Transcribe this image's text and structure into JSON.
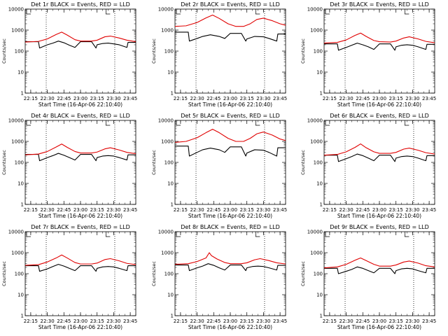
{
  "colors": {
    "events": "#000000",
    "lld": "#e00000",
    "axes": "#000000",
    "background": "#ffffff"
  },
  "chart_data": [
    {
      "type": "line",
      "title": "Det 1r BLACK = Events, RED = LLD",
      "xlabel": "Start Time (16-Apr-06 22:10:40)",
      "ylabel": "Counts/sec",
      "xtick_labels": [
        "22:15",
        "22:30",
        "22:45",
        "23:00",
        "23:15",
        "23:30",
        "23:45"
      ],
      "ytick_labels": [
        "1",
        "10",
        "100",
        "1000",
        "10000"
      ],
      "ylim": [
        1,
        10000
      ],
      "y_scale": "log",
      "vlines": [
        "22:29",
        "23:31"
      ],
      "series": [
        {
          "name": "Events",
          "color": "#000000",
          "x": [
            "22:10",
            "22:22",
            "22:23",
            "22:30",
            "22:35",
            "22:40",
            "22:45",
            "22:50",
            "22:55",
            "23:00",
            "23:10",
            "23:14",
            "23:15",
            "23:20",
            "23:25",
            "23:30",
            "23:35",
            "23:42",
            "23:43",
            "23:50"
          ],
          "values": [
            280,
            280,
            140,
            200,
            240,
            300,
            250,
            190,
            150,
            280,
            280,
            140,
            200,
            230,
            240,
            220,
            200,
            150,
            260,
            260
          ]
        },
        {
          "name": "LLD",
          "color": "#e00000",
          "x": [
            "22:10",
            "22:22",
            "22:30",
            "22:38",
            "22:43",
            "22:48",
            "22:55",
            "23:00",
            "23:10",
            "23:15",
            "23:22",
            "23:27",
            "23:35",
            "23:42",
            "23:50"
          ],
          "values": [
            270,
            290,
            380,
            620,
            800,
            580,
            350,
            300,
            300,
            330,
            480,
            520,
            420,
            330,
            280
          ]
        }
      ]
    },
    {
      "type": "line",
      "title": "Det 2r BLACK = Events, RED = LLD",
      "xlabel": "Start Time (16-Apr-06 22:10:40)",
      "ylabel": "Counts/sec",
      "xtick_labels": [
        "22:15",
        "22:30",
        "22:45",
        "23:00",
        "23:15",
        "23:30",
        "23:45"
      ],
      "ytick_labels": [
        "1",
        "10",
        "100",
        "1000",
        "10000"
      ],
      "ylim": [
        1,
        10000
      ],
      "y_scale": "log",
      "vlines": [
        "22:29",
        "23:31"
      ],
      "series": [
        {
          "name": "Events",
          "color": "#000000",
          "x": [
            "22:10",
            "22:22",
            "22:23",
            "22:30",
            "22:35",
            "22:42",
            "22:50",
            "22:55",
            "23:00",
            "23:10",
            "23:14",
            "23:15",
            "23:22",
            "23:30",
            "23:35",
            "23:42",
            "23:43",
            "23:50"
          ],
          "values": [
            800,
            800,
            300,
            400,
            500,
            600,
            500,
            400,
            700,
            700,
            300,
            380,
            500,
            480,
            400,
            300,
            650,
            650
          ]
        },
        {
          "name": "LLD",
          "color": "#e00000",
          "x": [
            "22:10",
            "22:20",
            "22:30",
            "22:38",
            "22:44",
            "22:50",
            "22:58",
            "23:05",
            "23:12",
            "23:18",
            "23:24",
            "23:30",
            "23:38",
            "23:45",
            "23:50"
          ],
          "values": [
            1500,
            1600,
            2300,
            3800,
            5200,
            3600,
            2000,
            1500,
            1500,
            2000,
            3200,
            3700,
            2800,
            2000,
            1700
          ]
        }
      ]
    },
    {
      "type": "line",
      "title": "Det 3r BLACK = Events, RED = LLD",
      "xlabel": "Start Time (16-Apr-06 22:10:40)",
      "ylabel": "Counts/sec",
      "xtick_labels": [
        "22:15",
        "22:30",
        "22:45",
        "23:00",
        "23:15",
        "23:30",
        "23:45"
      ],
      "ytick_labels": [
        "1",
        "10",
        "100",
        "1000",
        "10000"
      ],
      "ylim": [
        1,
        10000
      ],
      "y_scale": "log",
      "vlines": [
        "22:29",
        "23:31"
      ],
      "series": [
        {
          "name": "Events",
          "color": "#000000",
          "x": [
            "22:10",
            "22:22",
            "22:23",
            "22:30",
            "22:35",
            "22:40",
            "22:45",
            "22:50",
            "22:55",
            "23:00",
            "23:10",
            "23:14",
            "23:15",
            "23:20",
            "23:25",
            "23:30",
            "23:35",
            "23:42",
            "23:43",
            "23:50"
          ],
          "values": [
            220,
            220,
            110,
            150,
            190,
            240,
            200,
            160,
            120,
            220,
            220,
            110,
            160,
            190,
            200,
            190,
            160,
            120,
            210,
            210
          ]
        },
        {
          "name": "LLD",
          "color": "#e00000",
          "x": [
            "22:10",
            "22:22",
            "22:30",
            "22:38",
            "22:43",
            "22:48",
            "22:55",
            "23:00",
            "23:10",
            "23:15",
            "23:22",
            "23:27",
            "23:35",
            "23:42",
            "23:50"
          ],
          "values": [
            240,
            260,
            340,
            560,
            720,
            500,
            320,
            280,
            270,
            300,
            420,
            480,
            380,
            290,
            250
          ]
        }
      ]
    },
    {
      "type": "line",
      "title": "Det 4r BLACK = Events, RED = LLD",
      "xlabel": "Start Time (16-Apr-06 22:10:40)",
      "ylabel": "Counts/sec",
      "xtick_labels": [
        "22:15",
        "22:30",
        "22:45",
        "23:00",
        "23:15",
        "23:30",
        "23:45"
      ],
      "ytick_labels": [
        "1",
        "10",
        "100",
        "1000",
        "10000"
      ],
      "ylim": [
        1,
        10000
      ],
      "y_scale": "log",
      "vlines": [
        "22:29",
        "23:31"
      ],
      "series": [
        {
          "name": "Events",
          "color": "#000000",
          "x": [
            "22:10",
            "22:22",
            "22:23",
            "22:30",
            "22:35",
            "22:40",
            "22:45",
            "22:50",
            "22:55",
            "23:00",
            "23:10",
            "23:14",
            "23:15",
            "23:20",
            "23:25",
            "23:30",
            "23:35",
            "23:42",
            "23:43",
            "23:50"
          ],
          "values": [
            240,
            240,
            120,
            170,
            210,
            270,
            220,
            170,
            130,
            240,
            240,
            120,
            170,
            200,
            210,
            200,
            170,
            130,
            230,
            230
          ]
        },
        {
          "name": "LLD",
          "color": "#e00000",
          "x": [
            "22:10",
            "22:22",
            "22:30",
            "22:38",
            "22:43",
            "22:48",
            "22:55",
            "23:00",
            "23:10",
            "23:15",
            "23:22",
            "23:27",
            "23:35",
            "23:42",
            "23:50"
          ],
          "values": [
            230,
            250,
            330,
            540,
            750,
            520,
            330,
            280,
            280,
            310,
            440,
            500,
            390,
            300,
            260
          ]
        }
      ]
    },
    {
      "type": "line",
      "title": "Det 5r BLACK = Events, RED = LLD",
      "xlabel": "Start Time (16-Apr-06 22:10:40)",
      "ylabel": "Counts/sec",
      "xtick_labels": [
        "22:15",
        "22:30",
        "22:45",
        "23:00",
        "23:15",
        "23:30",
        "23:45"
      ],
      "ytick_labels": [
        "1",
        "10",
        "100",
        "1000",
        "10000"
      ],
      "ylim": [
        1,
        10000
      ],
      "y_scale": "log",
      "vlines": [
        "22:29",
        "23:31"
      ],
      "series": [
        {
          "name": "Events",
          "color": "#000000",
          "x": [
            "22:10",
            "22:22",
            "22:23",
            "22:30",
            "22:35",
            "22:42",
            "22:50",
            "22:55",
            "23:00",
            "23:10",
            "23:14",
            "23:15",
            "23:22",
            "23:30",
            "23:35",
            "23:42",
            "23:43",
            "23:50"
          ],
          "values": [
            600,
            600,
            200,
            300,
            400,
            480,
            400,
            300,
            550,
            550,
            200,
            280,
            400,
            380,
            300,
            200,
            500,
            500
          ]
        },
        {
          "name": "LLD",
          "color": "#e00000",
          "x": [
            "22:10",
            "22:20",
            "22:30",
            "22:38",
            "22:44",
            "22:50",
            "22:58",
            "23:05",
            "23:12",
            "23:18",
            "23:24",
            "23:30",
            "23:38",
            "23:45",
            "23:50"
          ],
          "values": [
            900,
            1000,
            1500,
            2600,
            3800,
            2600,
            1400,
            1000,
            1000,
            1400,
            2300,
            2800,
            2000,
            1300,
            1100
          ]
        }
      ]
    },
    {
      "type": "line",
      "title": "Det 6r BLACK = Events, RED = LLD",
      "xlabel": "Start Time (16-Apr-06 22:10:40)",
      "ylabel": "Counts/sec",
      "xtick_labels": [
        "22:15",
        "22:30",
        "22:45",
        "23:00",
        "23:15",
        "23:30",
        "23:45"
      ],
      "ytick_labels": [
        "1",
        "10",
        "100",
        "1000",
        "10000"
      ],
      "ylim": [
        1,
        10000
      ],
      "y_scale": "log",
      "vlines": [
        "22:29",
        "23:31"
      ],
      "series": [
        {
          "name": "Events",
          "color": "#000000",
          "x": [
            "22:10",
            "22:22",
            "22:23",
            "22:30",
            "22:35",
            "22:40",
            "22:45",
            "22:50",
            "22:55",
            "23:00",
            "23:10",
            "23:14",
            "23:15",
            "23:20",
            "23:25",
            "23:30",
            "23:35",
            "23:42",
            "23:43",
            "23:50"
          ],
          "values": [
            220,
            220,
            110,
            150,
            190,
            250,
            210,
            160,
            120,
            220,
            220,
            110,
            160,
            190,
            200,
            190,
            160,
            120,
            210,
            210
          ]
        },
        {
          "name": "LLD",
          "color": "#e00000",
          "x": [
            "22:10",
            "22:22",
            "22:30",
            "22:38",
            "22:43",
            "22:48",
            "22:55",
            "23:00",
            "23:10",
            "23:15",
            "23:22",
            "23:27",
            "23:35",
            "23:42",
            "23:50"
          ],
          "values": [
            220,
            240,
            320,
            520,
            760,
            500,
            320,
            270,
            270,
            300,
            430,
            480,
            380,
            290,
            250
          ]
        }
      ]
    },
    {
      "type": "line",
      "title": "Det 7r BLACK = Events, RED = LLD",
      "xlabel": "Start Time (16-Apr-06 22:10:40)",
      "ylabel": "Counts/sec",
      "xtick_labels": [
        "22:15",
        "22:30",
        "22:45",
        "23:00",
        "23:15",
        "23:30",
        "23:45"
      ],
      "ytick_labels": [
        "1",
        "10",
        "100",
        "1000",
        "10000"
      ],
      "ylim": [
        1,
        10000
      ],
      "y_scale": "log",
      "vlines": [
        "22:29",
        "23:31"
      ],
      "series": [
        {
          "name": "Events",
          "color": "#000000",
          "x": [
            "22:10",
            "22:22",
            "22:23",
            "22:30",
            "22:35",
            "22:40",
            "22:45",
            "22:50",
            "22:55",
            "23:00",
            "23:10",
            "23:14",
            "23:15",
            "23:20",
            "23:25",
            "23:30",
            "23:35",
            "23:42",
            "23:43",
            "23:50"
          ],
          "values": [
            240,
            240,
            130,
            170,
            220,
            280,
            230,
            180,
            140,
            240,
            240,
            130,
            180,
            210,
            220,
            210,
            180,
            140,
            240,
            240
          ]
        },
        {
          "name": "LLD",
          "color": "#e00000",
          "x": [
            "22:10",
            "22:22",
            "22:30",
            "22:38",
            "22:43",
            "22:48",
            "22:55",
            "23:00",
            "23:10",
            "23:15",
            "23:22",
            "23:27",
            "23:35",
            "23:42",
            "23:50"
          ],
          "values": [
            250,
            270,
            360,
            560,
            780,
            560,
            340,
            290,
            290,
            320,
            470,
            520,
            410,
            310,
            270
          ]
        }
      ]
    },
    {
      "type": "line",
      "title": "Det 8r BLACK = Events, RED = LLD",
      "xlabel": "Start Time (16-Apr-06 22:10:40)",
      "ylabel": "Counts/sec",
      "xtick_labels": [
        "22:15",
        "22:30",
        "22:45",
        "23:00",
        "23:15",
        "23:30",
        "23:45"
      ],
      "ytick_labels": [
        "1",
        "10",
        "100",
        "1000",
        "10000"
      ],
      "ylim": [
        1,
        10000
      ],
      "y_scale": "log",
      "vlines": [
        "22:29",
        "23:31"
      ],
      "series": [
        {
          "name": "Events",
          "color": "#000000",
          "x": [
            "22:10",
            "22:22",
            "22:23",
            "22:30",
            "22:35",
            "22:40",
            "22:45",
            "22:50",
            "22:55",
            "23:00",
            "23:10",
            "23:14",
            "23:15",
            "23:20",
            "23:25",
            "23:30",
            "23:35",
            "23:42",
            "23:43",
            "23:50"
          ],
          "values": [
            260,
            260,
            140,
            190,
            230,
            300,
            250,
            190,
            150,
            260,
            260,
            140,
            190,
            220,
            230,
            220,
            190,
            150,
            250,
            250
          ]
        },
        {
          "name": "LLD",
          "color": "#e00000",
          "x": [
            "22:10",
            "22:22",
            "22:30",
            "22:38",
            "22:41",
            "22:43",
            "22:48",
            "22:55",
            "23:00",
            "23:10",
            "23:15",
            "23:22",
            "23:27",
            "23:35",
            "23:42",
            "23:50"
          ],
          "values": [
            280,
            300,
            380,
            560,
            1000,
            720,
            500,
            340,
            300,
            300,
            330,
            460,
            520,
            420,
            330,
            290
          ]
        }
      ]
    },
    {
      "type": "line",
      "title": "Det 9r BLACK = Events, RED = LLD",
      "xlabel": "Start Time (16-Apr-06 22:10:40)",
      "ylabel": "Counts/sec",
      "xtick_labels": [
        "22:15",
        "22:30",
        "22:45",
        "23:00",
        "23:15",
        "23:30",
        "23:45"
      ],
      "ytick_labels": [
        "1",
        "10",
        "100",
        "1000",
        "10000"
      ],
      "ylim": [
        1,
        10000
      ],
      "y_scale": "log",
      "vlines": [
        "22:29",
        "23:31"
      ],
      "series": [
        {
          "name": "Events",
          "color": "#000000",
          "x": [
            "22:10",
            "22:22",
            "22:23",
            "22:30",
            "22:35",
            "22:40",
            "22:45",
            "22:50",
            "22:55",
            "23:00",
            "23:10",
            "23:14",
            "23:15",
            "23:20",
            "23:25",
            "23:30",
            "23:35",
            "23:42",
            "23:43",
            "23:50"
          ],
          "values": [
            180,
            180,
            100,
            130,
            160,
            210,
            180,
            140,
            110,
            180,
            180,
            100,
            140,
            170,
            180,
            170,
            140,
            110,
            180,
            180
          ]
        },
        {
          "name": "LLD",
          "color": "#e00000",
          "x": [
            "22:10",
            "22:22",
            "22:30",
            "22:38",
            "22:43",
            "22:48",
            "22:55",
            "23:00",
            "23:10",
            "23:15",
            "23:22",
            "23:27",
            "23:35",
            "23:42",
            "23:50"
          ],
          "values": [
            190,
            210,
            280,
            440,
            560,
            420,
            280,
            230,
            230,
            260,
            360,
            400,
            320,
            240,
            210
          ]
        }
      ]
    }
  ]
}
